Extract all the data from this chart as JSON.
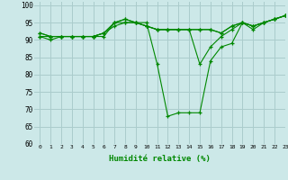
{
  "title": "",
  "xlabel": "Humidité relative (%)",
  "ylabel": "",
  "xlim": [
    -0.5,
    23
  ],
  "ylim": [
    60,
    101
  ],
  "yticks": [
    60,
    65,
    70,
    75,
    80,
    85,
    90,
    95,
    100
  ],
  "xticks": [
    0,
    1,
    2,
    3,
    4,
    5,
    6,
    7,
    8,
    9,
    10,
    11,
    12,
    13,
    14,
    15,
    16,
    17,
    18,
    19,
    20,
    21,
    22,
    23
  ],
  "line_color": "#008800",
  "bg_color": "#cce8e8",
  "grid_color": "#aacccc",
  "lines": [
    [
      91,
      90,
      91,
      91,
      91,
      91,
      91,
      95,
      96,
      95,
      95,
      83,
      68,
      69,
      69,
      69,
      84,
      88,
      89,
      95,
      93,
      95,
      96,
      97
    ],
    [
      91,
      91,
      91,
      91,
      91,
      91,
      92,
      95,
      96,
      95,
      94,
      93,
      93,
      93,
      93,
      83,
      88,
      91,
      93,
      95,
      94,
      95,
      96,
      97
    ],
    [
      92,
      91,
      91,
      91,
      91,
      91,
      92,
      95,
      95,
      95,
      94,
      93,
      93,
      93,
      93,
      93,
      93,
      92,
      94,
      95,
      94,
      95,
      96,
      97
    ],
    [
      92,
      91,
      91,
      91,
      91,
      91,
      92,
      94,
      95,
      95,
      94,
      93,
      93,
      93,
      93,
      93,
      93,
      92,
      94,
      95,
      94,
      95,
      96,
      97
    ]
  ]
}
